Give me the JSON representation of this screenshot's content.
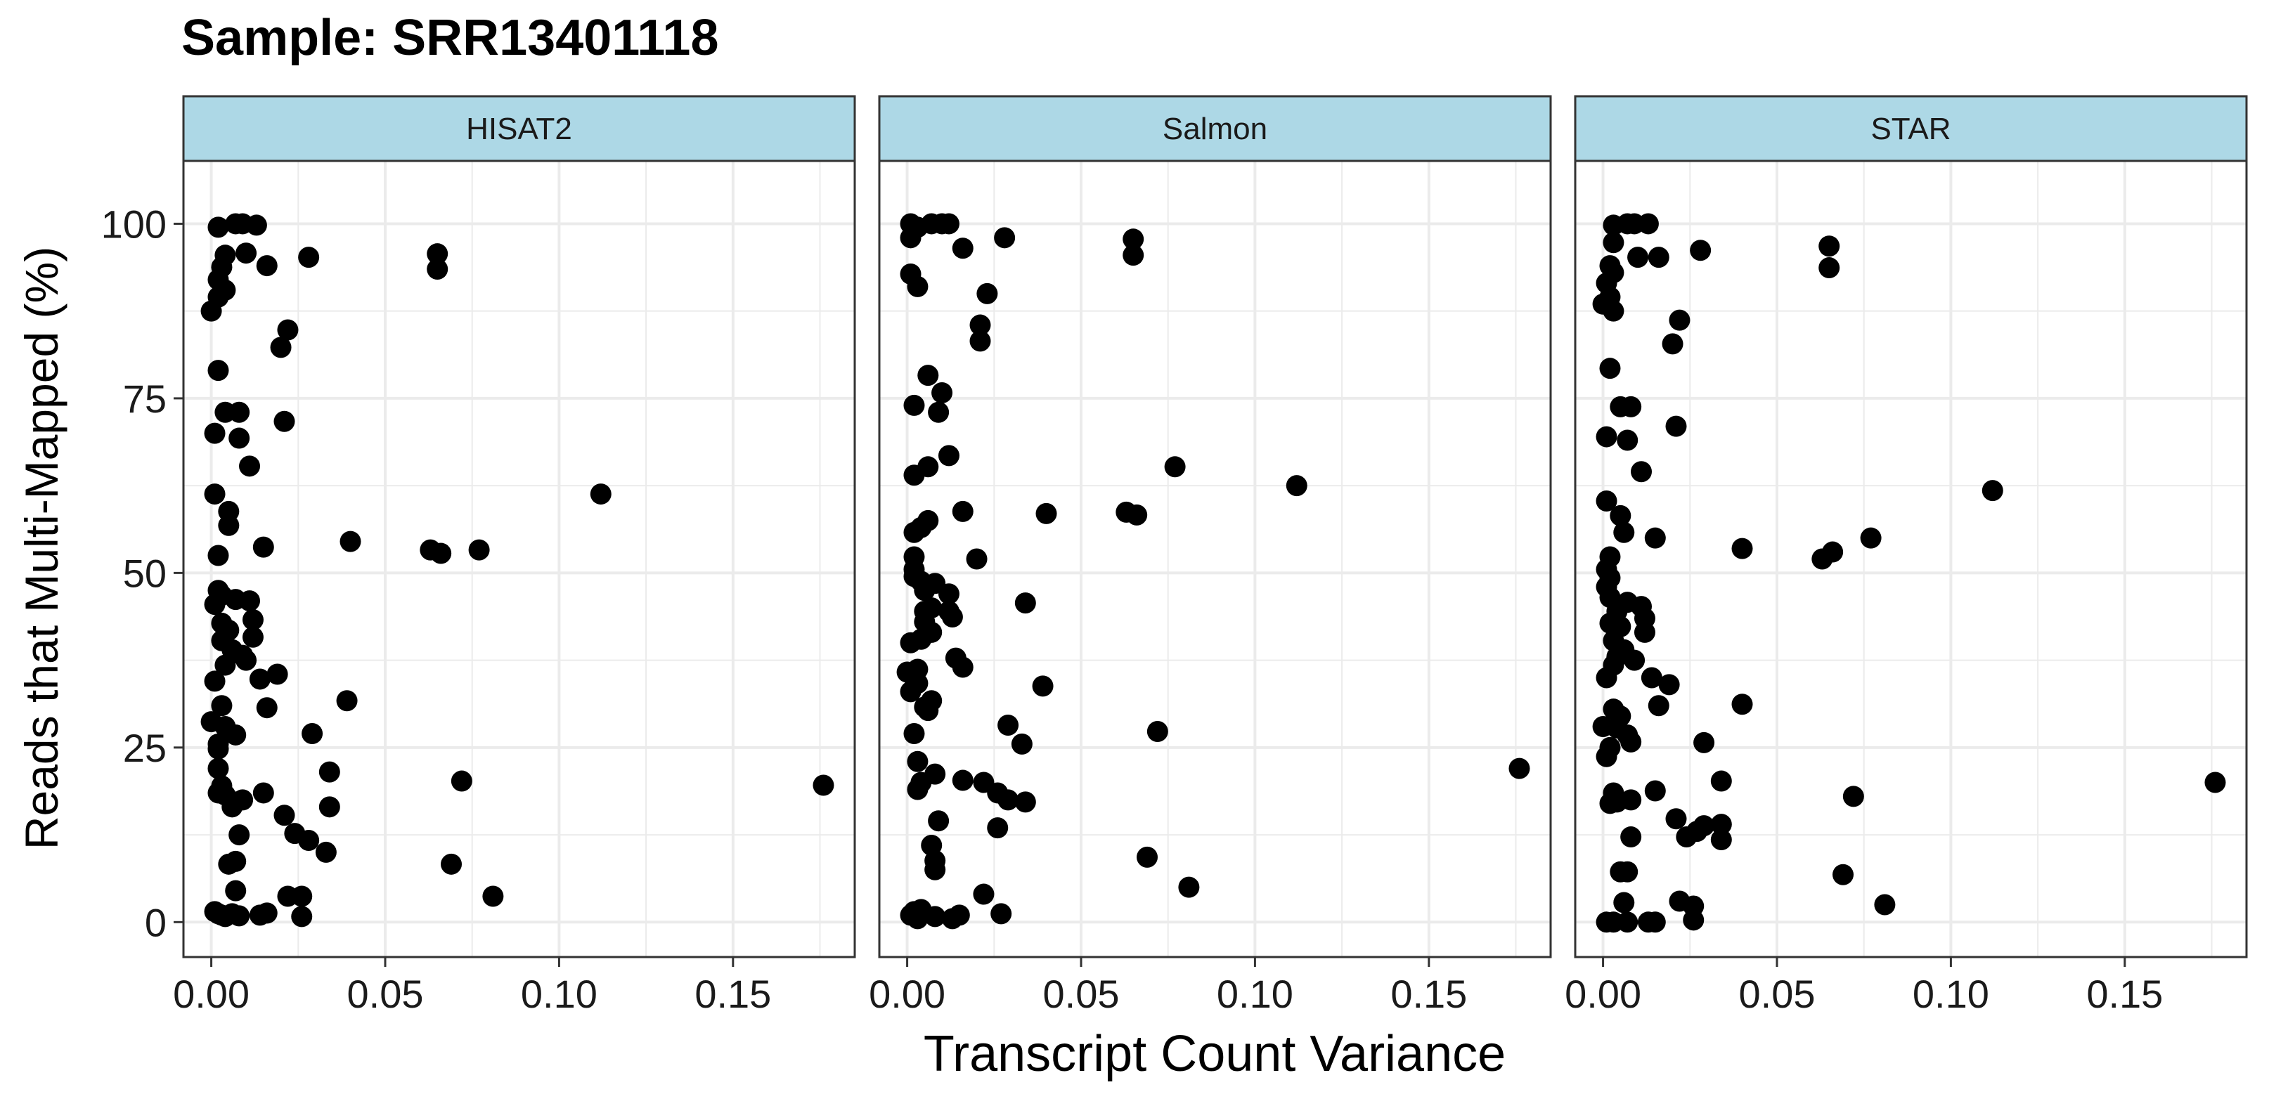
{
  "title": "Sample: SRR13401118",
  "xlabel": "Transcript Count Variance",
  "ylabel": "Reads that Multi-Mapped (%)",
  "colors": {
    "strip_fill": "#add8e6",
    "panel_border": "#333333",
    "grid": "#ebebeb",
    "point": "#000000"
  },
  "chart_data": {
    "type": "scatter",
    "title": "Sample: SRR13401118",
    "xlabel": "Transcript Count Variance",
    "ylabel": "Reads that Multi-Mapped (%)",
    "xlim": [
      -0.008,
      0.185
    ],
    "ylim": [
      -5,
      109
    ],
    "x_ticks": [
      0.0,
      0.05,
      0.1,
      0.15
    ],
    "x_tick_labels": [
      "0.00",
      "0.05",
      "0.10",
      "0.15"
    ],
    "y_ticks": [
      0,
      25,
      50,
      75,
      100
    ],
    "y_tick_labels": [
      "0",
      "25",
      "50",
      "75",
      "100"
    ],
    "grid": true,
    "legend": "none",
    "facets": [
      {
        "name": "HISAT2",
        "points": [
          [
            0.002,
            99.5
          ],
          [
            0.007,
            100
          ],
          [
            0.009,
            100
          ],
          [
            0.013,
            99.8
          ],
          [
            0.004,
            95.5
          ],
          [
            0.01,
            95.8
          ],
          [
            0.028,
            95.2
          ],
          [
            0.065,
            95.7
          ],
          [
            0.065,
            93.5
          ],
          [
            0.003,
            93.8
          ],
          [
            0.016,
            94.0
          ],
          [
            0.002,
            92.0
          ],
          [
            0.004,
            90.5
          ],
          [
            0.002,
            89.5
          ],
          [
            0.0,
            87.5
          ],
          [
            0.022,
            84.8
          ],
          [
            0.02,
            82.3
          ],
          [
            0.002,
            79.0
          ],
          [
            0.004,
            73.0
          ],
          [
            0.008,
            73.0
          ],
          [
            0.021,
            71.7
          ],
          [
            0.001,
            70.0
          ],
          [
            0.008,
            69.3
          ],
          [
            0.011,
            65.3
          ],
          [
            0.112,
            61.3
          ],
          [
            0.001,
            61.3
          ],
          [
            0.005,
            58.8
          ],
          [
            0.005,
            56.8
          ],
          [
            0.04,
            54.5
          ],
          [
            0.015,
            53.7
          ],
          [
            0.063,
            53.3
          ],
          [
            0.066,
            52.8
          ],
          [
            0.077,
            53.3
          ],
          [
            0.002,
            52.5
          ],
          [
            0.002,
            47.5
          ],
          [
            0.003,
            46.8
          ],
          [
            0.007,
            46.2
          ],
          [
            0.011,
            46.0
          ],
          [
            0.001,
            45.5
          ],
          [
            0.012,
            43.3
          ],
          [
            0.003,
            42.8
          ],
          [
            0.005,
            41.8
          ],
          [
            0.012,
            40.8
          ],
          [
            0.003,
            40.3
          ],
          [
            0.006,
            39.0
          ],
          [
            0.009,
            38.2
          ],
          [
            0.01,
            37.5
          ],
          [
            0.004,
            36.8
          ],
          [
            0.019,
            35.5
          ],
          [
            0.014,
            34.8
          ],
          [
            0.001,
            34.5
          ],
          [
            0.039,
            31.7
          ],
          [
            0.003,
            31.0
          ],
          [
            0.016,
            30.7
          ],
          [
            0.0,
            28.7
          ],
          [
            0.004,
            28.0
          ],
          [
            0.007,
            26.8
          ],
          [
            0.029,
            27.0
          ],
          [
            0.002,
            25.5
          ],
          [
            0.002,
            24.8
          ],
          [
            0.002,
            22.0
          ],
          [
            0.034,
            21.5
          ],
          [
            0.072,
            20.2
          ],
          [
            0.176,
            19.6
          ],
          [
            0.003,
            19.5
          ],
          [
            0.002,
            18.5
          ],
          [
            0.004,
            18.2
          ],
          [
            0.015,
            18.5
          ],
          [
            0.007,
            17.2
          ],
          [
            0.009,
            17.5
          ],
          [
            0.006,
            16.5
          ],
          [
            0.034,
            16.5
          ],
          [
            0.021,
            15.3
          ],
          [
            0.008,
            12.5
          ],
          [
            0.024,
            12.7
          ],
          [
            0.028,
            11.7
          ],
          [
            0.033,
            10.0
          ],
          [
            0.005,
            8.3
          ],
          [
            0.007,
            8.7
          ],
          [
            0.069,
            8.3
          ],
          [
            0.007,
            4.5
          ],
          [
            0.022,
            3.7
          ],
          [
            0.026,
            3.7
          ],
          [
            0.081,
            3.7
          ],
          [
            0.001,
            1.5
          ],
          [
            0.002,
            1.2
          ],
          [
            0.003,
            1.0
          ],
          [
            0.004,
            0.8
          ],
          [
            0.006,
            1.2
          ],
          [
            0.008,
            0.9
          ],
          [
            0.014,
            1.0
          ],
          [
            0.016,
            1.3
          ],
          [
            0.026,
            0.8
          ]
        ]
      },
      {
        "name": "Salmon",
        "points": [
          [
            0.001,
            100
          ],
          [
            0.003,
            99.5
          ],
          [
            0.007,
            100
          ],
          [
            0.01,
            100
          ],
          [
            0.012,
            100
          ],
          [
            0.001,
            98.0
          ],
          [
            0.028,
            98.0
          ],
          [
            0.065,
            97.8
          ],
          [
            0.065,
            95.5
          ],
          [
            0.016,
            96.5
          ],
          [
            0.001,
            92.8
          ],
          [
            0.003,
            91.0
          ],
          [
            0.023,
            90.0
          ],
          [
            0.021,
            85.5
          ],
          [
            0.021,
            83.2
          ],
          [
            0.006,
            78.3
          ],
          [
            0.01,
            75.8
          ],
          [
            0.002,
            74.0
          ],
          [
            0.009,
            73.0
          ],
          [
            0.012,
            66.8
          ],
          [
            0.006,
            65.2
          ],
          [
            0.077,
            65.2
          ],
          [
            0.002,
            64.0
          ],
          [
            0.112,
            62.5
          ],
          [
            0.016,
            58.8
          ],
          [
            0.04,
            58.5
          ],
          [
            0.063,
            58.7
          ],
          [
            0.066,
            58.3
          ],
          [
            0.006,
            57.5
          ],
          [
            0.004,
            56.5
          ],
          [
            0.002,
            55.8
          ],
          [
            0.02,
            52.0
          ],
          [
            0.002,
            52.3
          ],
          [
            0.002,
            50.5
          ],
          [
            0.002,
            49.5
          ],
          [
            0.004,
            48.8
          ],
          [
            0.008,
            48.5
          ],
          [
            0.005,
            47.5
          ],
          [
            0.012,
            47.0
          ],
          [
            0.034,
            45.7
          ],
          [
            0.005,
            44.5
          ],
          [
            0.007,
            45.0
          ],
          [
            0.012,
            44.5
          ],
          [
            0.013,
            43.7
          ],
          [
            0.005,
            43.0
          ],
          [
            0.007,
            41.5
          ],
          [
            0.001,
            40.0
          ],
          [
            0.004,
            40.5
          ],
          [
            0.014,
            37.8
          ],
          [
            0.016,
            36.5
          ],
          [
            0.003,
            36.2
          ],
          [
            0.0,
            35.8
          ],
          [
            0.002,
            35.0
          ],
          [
            0.003,
            34.2
          ],
          [
            0.039,
            33.8
          ],
          [
            0.001,
            33.0
          ],
          [
            0.007,
            31.7
          ],
          [
            0.005,
            30.8
          ],
          [
            0.006,
            30.3
          ],
          [
            0.029,
            28.2
          ],
          [
            0.072,
            27.3
          ],
          [
            0.002,
            27.0
          ],
          [
            0.033,
            25.5
          ],
          [
            0.003,
            23.0
          ],
          [
            0.176,
            22.0
          ],
          [
            0.008,
            21.2
          ],
          [
            0.016,
            20.3
          ],
          [
            0.022,
            20.0
          ],
          [
            0.004,
            20.0
          ],
          [
            0.003,
            19.0
          ],
          [
            0.026,
            18.5
          ],
          [
            0.029,
            17.5
          ],
          [
            0.034,
            17.2
          ],
          [
            0.009,
            14.5
          ],
          [
            0.026,
            13.5
          ],
          [
            0.007,
            11.0
          ],
          [
            0.069,
            9.3
          ],
          [
            0.008,
            8.8
          ],
          [
            0.008,
            7.5
          ],
          [
            0.081,
            5.0
          ],
          [
            0.022,
            4.0
          ],
          [
            0.002,
            1.5
          ],
          [
            0.004,
            1.8
          ],
          [
            0.001,
            1.0
          ],
          [
            0.003,
            0.5
          ],
          [
            0.008,
            0.8
          ],
          [
            0.013,
            0.5
          ],
          [
            0.015,
            1.0
          ],
          [
            0.027,
            1.2
          ]
        ]
      },
      {
        "name": "STAR",
        "points": [
          [
            0.003,
            99.8
          ],
          [
            0.007,
            100
          ],
          [
            0.009,
            100
          ],
          [
            0.013,
            100
          ],
          [
            0.003,
            97.3
          ],
          [
            0.065,
            96.8
          ],
          [
            0.028,
            96.2
          ],
          [
            0.01,
            95.2
          ],
          [
            0.016,
            95.2
          ],
          [
            0.065,
            93.7
          ],
          [
            0.002,
            94.0
          ],
          [
            0.003,
            93.0
          ],
          [
            0.001,
            91.5
          ],
          [
            0.002,
            89.5
          ],
          [
            0.0,
            88.5
          ],
          [
            0.003,
            87.5
          ],
          [
            0.022,
            86.2
          ],
          [
            0.02,
            82.8
          ],
          [
            0.002,
            79.3
          ],
          [
            0.005,
            73.8
          ],
          [
            0.008,
            73.8
          ],
          [
            0.021,
            71.0
          ],
          [
            0.001,
            69.5
          ],
          [
            0.007,
            69.0
          ],
          [
            0.011,
            64.5
          ],
          [
            0.112,
            61.8
          ],
          [
            0.001,
            60.3
          ],
          [
            0.005,
            58.2
          ],
          [
            0.006,
            55.8
          ],
          [
            0.015,
            55.0
          ],
          [
            0.077,
            55.0
          ],
          [
            0.04,
            53.5
          ],
          [
            0.066,
            53.0
          ],
          [
            0.063,
            52.0
          ],
          [
            0.002,
            52.3
          ],
          [
            0.001,
            50.5
          ],
          [
            0.002,
            49.3
          ],
          [
            0.001,
            48.0
          ],
          [
            0.002,
            46.5
          ],
          [
            0.007,
            45.8
          ],
          [
            0.011,
            45.2
          ],
          [
            0.004,
            44.5
          ],
          [
            0.012,
            43.5
          ],
          [
            0.002,
            42.8
          ],
          [
            0.005,
            42.3
          ],
          [
            0.012,
            41.5
          ],
          [
            0.003,
            40.3
          ],
          [
            0.006,
            39.0
          ],
          [
            0.004,
            38.0
          ],
          [
            0.009,
            37.5
          ],
          [
            0.003,
            36.8
          ],
          [
            0.014,
            35.0
          ],
          [
            0.001,
            35.0
          ],
          [
            0.019,
            34.0
          ],
          [
            0.04,
            31.2
          ],
          [
            0.016,
            31.0
          ],
          [
            0.003,
            30.5
          ],
          [
            0.005,
            29.5
          ],
          [
            0.0,
            28.0
          ],
          [
            0.004,
            27.8
          ],
          [
            0.007,
            26.8
          ],
          [
            0.002,
            25.0
          ],
          [
            0.008,
            25.8
          ],
          [
            0.029,
            25.7
          ],
          [
            0.001,
            23.7
          ],
          [
            0.176,
            20.0
          ],
          [
            0.034,
            20.2
          ],
          [
            0.015,
            18.8
          ],
          [
            0.072,
            18.0
          ],
          [
            0.003,
            18.5
          ],
          [
            0.002,
            17.0
          ],
          [
            0.004,
            17.2
          ],
          [
            0.008,
            17.5
          ],
          [
            0.021,
            14.8
          ],
          [
            0.029,
            13.8
          ],
          [
            0.034,
            14.0
          ],
          [
            0.027,
            13.0
          ],
          [
            0.024,
            12.2
          ],
          [
            0.008,
            12.2
          ],
          [
            0.034,
            11.8
          ],
          [
            0.069,
            6.8
          ],
          [
            0.005,
            7.2
          ],
          [
            0.007,
            7.2
          ],
          [
            0.081,
            2.5
          ],
          [
            0.006,
            2.8
          ],
          [
            0.022,
            3.0
          ],
          [
            0.026,
            2.3
          ],
          [
            0.001,
            0.0
          ],
          [
            0.003,
            0.0
          ],
          [
            0.007,
            0.0
          ],
          [
            0.013,
            0.0
          ],
          [
            0.015,
            0.0
          ],
          [
            0.026,
            0.3
          ]
        ]
      }
    ]
  }
}
